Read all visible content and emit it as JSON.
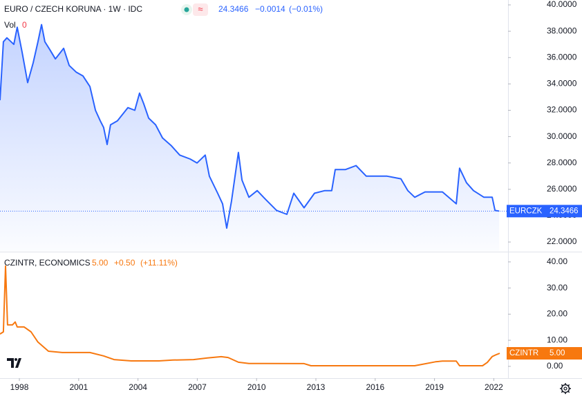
{
  "chart_data": [
    {
      "type": "line",
      "title": "EURO / CZECH KORUNA · 1W · IDC",
      "quote": {
        "last": "24.3466",
        "change": "−0.0014",
        "change_pct": "(−0.01%)"
      },
      "volume": {
        "label": "Vol",
        "value": 0
      },
      "xlim": [
        1997.02,
        2022.72
      ],
      "ylim": [
        21.32,
        40.37
      ],
      "yticks": [
        {
          "value": 22,
          "label": "22.0000"
        },
        {
          "value": 24,
          "label": "24.0000"
        },
        {
          "value": 26,
          "label": "26.0000"
        },
        {
          "value": 28,
          "label": "28.0000"
        },
        {
          "value": 30,
          "label": "30.0000"
        },
        {
          "value": 32,
          "label": "32.0000"
        },
        {
          "value": 34,
          "label": "34.0000"
        },
        {
          "value": 36,
          "label": "36.0000"
        },
        {
          "value": 38,
          "label": "38.0000"
        },
        {
          "value": 40,
          "label": "40.0000"
        }
      ],
      "series": [
        {
          "name": "EURCZK",
          "color": "#2962ff",
          "x": [
            1997.02,
            1997.19,
            1997.37,
            1997.72,
            1997.89,
            1998.14,
            1998.42,
            1998.7,
            1998.94,
            1999.12,
            1999.29,
            1999.54,
            1999.82,
            2000.24,
            2000.52,
            2000.87,
            2001.22,
            2001.57,
            2001.85,
            2002.09,
            2002.26,
            2002.44,
            2002.61,
            2002.96,
            2003.49,
            2003.84,
            2004.08,
            2004.29,
            2004.54,
            2004.89,
            2005.24,
            2005.69,
            2006.11,
            2006.64,
            2006.99,
            2007.4,
            2007.61,
            2008.03,
            2008.28,
            2008.49,
            2008.73,
            2009.08,
            2009.26,
            2009.61,
            2010.03,
            2010.48,
            2011.01,
            2011.53,
            2011.88,
            2012.4,
            2012.93,
            2013.45,
            2013.8,
            2013.98,
            2014.5,
            2015.03,
            2015.55,
            2016.6,
            2017.3,
            2017.65,
            2018.0,
            2018.52,
            2019.4,
            2020.1,
            2020.27,
            2020.62,
            2020.97,
            2021.5,
            2021.92,
            2022.06,
            2022.27
          ],
          "values": [
            32.76,
            37.2,
            37.5,
            37.0,
            38.3,
            36.4,
            34.1,
            35.6,
            37.2,
            38.5,
            37.2,
            36.6,
            35.9,
            36.7,
            35.4,
            34.9,
            34.6,
            33.8,
            32.0,
            31.2,
            30.7,
            29.4,
            30.9,
            31.2,
            32.2,
            32.0,
            33.3,
            32.5,
            31.4,
            30.9,
            29.9,
            29.3,
            28.6,
            28.3,
            28.0,
            28.6,
            27.0,
            25.7,
            24.9,
            23.05,
            25.1,
            28.8,
            26.7,
            25.4,
            25.9,
            25.2,
            24.4,
            24.1,
            25.7,
            24.6,
            25.7,
            25.9,
            25.9,
            27.5,
            27.5,
            27.8,
            27.0,
            27.0,
            26.8,
            25.9,
            25.4,
            25.8,
            25.8,
            24.9,
            27.6,
            26.5,
            25.9,
            25.4,
            25.4,
            24.4,
            24.3466
          ]
        }
      ]
    },
    {
      "type": "line",
      "title": "CZINTR, ECONOMICS",
      "quote": {
        "last": "5.00",
        "change": "+0.50",
        "change_pct": "(+11.11%)"
      },
      "xlim": [
        1997.02,
        2022.72
      ],
      "xticks": [
        1998,
        2001,
        2004,
        2007,
        2010,
        2013,
        2016,
        2019,
        2022
      ],
      "ylim": [
        -4.0,
        43.4
      ],
      "yticks": [
        {
          "value": 0,
          "label": "0.00"
        },
        {
          "value": 10,
          "label": "10.00"
        },
        {
          "value": 20,
          "label": "20.00"
        },
        {
          "value": 30,
          "label": "30.00"
        },
        {
          "value": 40,
          "label": "40.00"
        }
      ],
      "series": [
        {
          "name": "CZINTR",
          "color": "#f7780f",
          "x": [
            1997.02,
            1997.19,
            1997.3,
            1997.4,
            1997.65,
            1997.79,
            1997.89,
            1998.24,
            1998.59,
            1998.94,
            1999.47,
            2000.17,
            2001.57,
            2002.26,
            2002.79,
            2003.66,
            2005.06,
            2005.76,
            2006.81,
            2007.51,
            2008.21,
            2008.56,
            2009.08,
            2009.61,
            2012.4,
            2012.75,
            2018.0,
            2018.35,
            2019.05,
            2019.4,
            2020.1,
            2020.27,
            2021.43,
            2021.67,
            2021.92,
            2022.13,
            2022.3
          ],
          "values": [
            12.4,
            13.2,
            38.4,
            15.9,
            15.9,
            17.0,
            15.1,
            15.1,
            13.2,
            9.3,
            5.8,
            5.3,
            5.3,
            4.0,
            2.6,
            2.1,
            2.1,
            2.4,
            2.6,
            3.2,
            3.7,
            3.4,
            1.6,
            1.1,
            1.05,
            0.25,
            0.25,
            0.75,
            1.75,
            2.0,
            2.0,
            0.25,
            0.25,
            1.5,
            3.75,
            4.5,
            5.0
          ]
        }
      ]
    }
  ]
}
